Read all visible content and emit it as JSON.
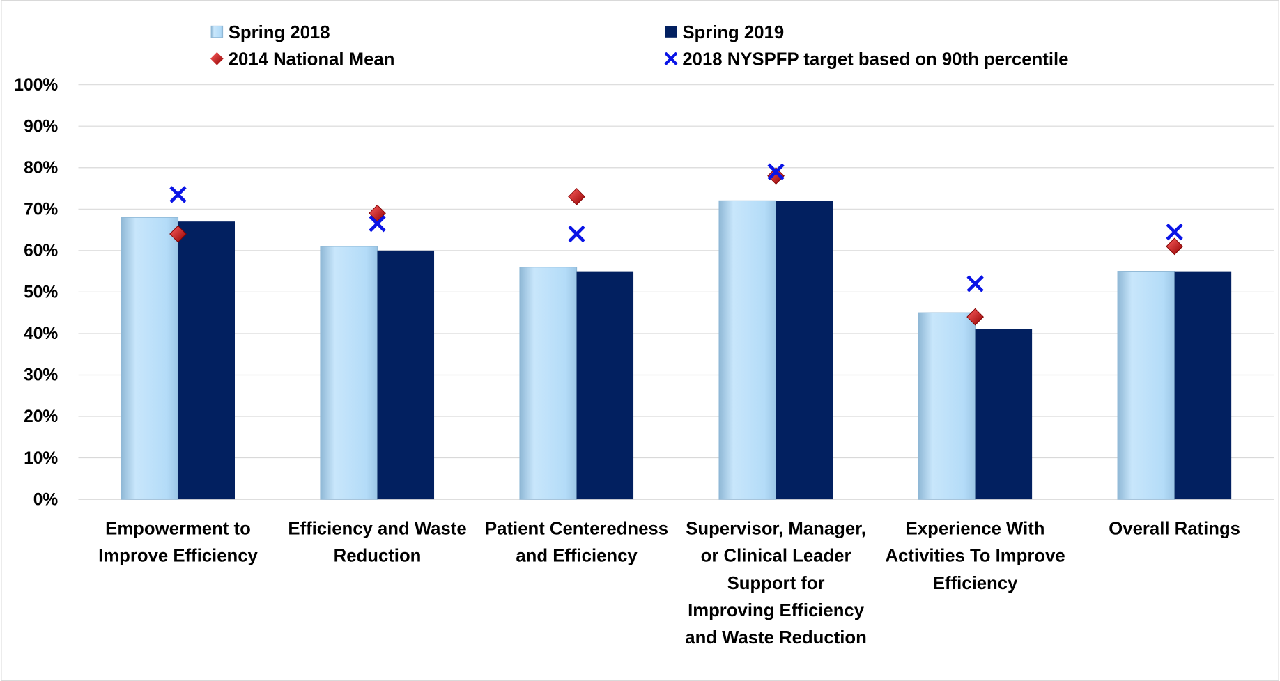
{
  "chart_data": {
    "type": "bar",
    "categories": [
      "Empowerment to\nImprove Efficiency",
      "Efficiency and Waste\nReduction",
      "Patient Centeredness\nand Efficiency",
      "Supervisor, Manager,\nor Clinical Leader\nSupport for\nImproving Efficiency\nand Waste Reduction",
      "Experience With\nActivities To Improve\nEfficiency",
      "Overall Ratings"
    ],
    "series": [
      {
        "name": "Spring 2018",
        "color": "#b4dcf8",
        "marker": "bar",
        "values": [
          68,
          61,
          56,
          72,
          45,
          55
        ]
      },
      {
        "name": "Spring 2019",
        "color": "#022060",
        "marker": "bar",
        "values": [
          67,
          60,
          55,
          72,
          41,
          55
        ]
      },
      {
        "name": "2014 National Mean",
        "color": "#c00000",
        "marker": "diamond",
        "values": [
          64,
          69,
          73,
          78,
          44,
          61
        ]
      },
      {
        "name": "2018 NYSPFP target based on 90th percentile",
        "color": "#0a14e6",
        "marker": "x",
        "values": [
          73.5,
          66.5,
          64,
          79,
          52,
          64.5
        ]
      }
    ],
    "ylim": [
      0,
      100
    ],
    "yticks": [
      {
        "value": 0,
        "label": "0%"
      },
      {
        "value": 10,
        "label": "10%"
      },
      {
        "value": 20,
        "label": "20%"
      },
      {
        "value": 30,
        "label": "30%"
      },
      {
        "value": 40,
        "label": "40%"
      },
      {
        "value": 50,
        "label": "50%"
      },
      {
        "value": 60,
        "label": "60%"
      },
      {
        "value": 70,
        "label": "70%"
      },
      {
        "value": 80,
        "label": "80%"
      },
      {
        "value": 90,
        "label": "90%"
      },
      {
        "value": 100,
        "label": "100%"
      }
    ],
    "grid": true,
    "legend": "top"
  }
}
